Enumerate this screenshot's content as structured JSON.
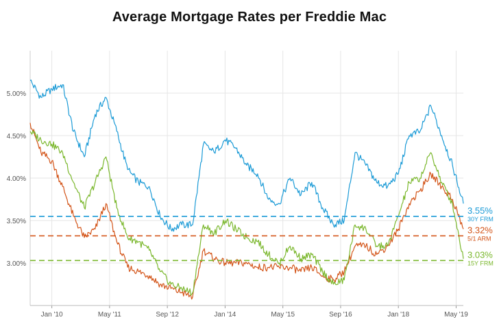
{
  "chart_data": {
    "type": "line",
    "title": "Average Mortgage Rates per Freddie Mac",
    "xlabel": "",
    "ylabel": "",
    "ylim": [
      2.5,
      5.5
    ],
    "xlim": [
      "2009-07",
      "2019-07"
    ],
    "grid": true,
    "y_ticks": [
      {
        "value": 3.0,
        "label": "3.00%"
      },
      {
        "value": 3.5,
        "label": "3.50%"
      },
      {
        "value": 4.0,
        "label": "4.00%"
      },
      {
        "value": 4.5,
        "label": "4.50%"
      },
      {
        "value": 5.0,
        "label": "5.00%"
      }
    ],
    "x_ticks": [
      {
        "date": "2010-01",
        "label": "Jan '10"
      },
      {
        "date": "2011-05",
        "label": "May '11"
      },
      {
        "date": "2012-09",
        "label": "Sep '12"
      },
      {
        "date": "2014-01",
        "label": "Jan '14"
      },
      {
        "date": "2015-05",
        "label": "May '15"
      },
      {
        "date": "2016-09",
        "label": "Sep '16"
      },
      {
        "date": "2018-01",
        "label": "Jan '18"
      },
      {
        "date": "2019-05",
        "label": "May '19"
      }
    ],
    "x": [
      "2009-07",
      "2009-10",
      "2010-01",
      "2010-04",
      "2010-07",
      "2010-10",
      "2011-01",
      "2011-04",
      "2011-07",
      "2011-10",
      "2012-01",
      "2012-04",
      "2012-07",
      "2012-10",
      "2013-01",
      "2013-04",
      "2013-07",
      "2013-10",
      "2014-01",
      "2014-04",
      "2014-07",
      "2014-10",
      "2015-01",
      "2015-04",
      "2015-07",
      "2015-10",
      "2016-01",
      "2016-04",
      "2016-07",
      "2016-10",
      "2017-01",
      "2017-04",
      "2017-07",
      "2017-10",
      "2018-01",
      "2018-04",
      "2018-07",
      "2018-10",
      "2019-01",
      "2019-04",
      "2019-07"
    ],
    "series": [
      {
        "name": "30Y FRM",
        "color": "#1a9ad6",
        "values": [
          5.15,
          4.95,
          5.05,
          5.1,
          4.55,
          4.25,
          4.75,
          4.95,
          4.55,
          4.1,
          3.95,
          3.9,
          3.55,
          3.4,
          3.45,
          3.45,
          4.4,
          4.3,
          4.45,
          4.35,
          4.15,
          4.05,
          3.75,
          3.7,
          4.0,
          3.8,
          3.95,
          3.65,
          3.45,
          3.5,
          4.3,
          4.15,
          3.95,
          3.9,
          4.05,
          4.5,
          4.55,
          4.85,
          4.5,
          4.15,
          3.7
        ],
        "end_value": 3.55,
        "end_label": "3.55%"
      },
      {
        "name": "5/1 ARM",
        "color": "#d35418",
        "values": [
          4.65,
          4.3,
          4.2,
          3.9,
          3.55,
          3.3,
          3.4,
          3.7,
          3.25,
          2.95,
          2.9,
          2.85,
          2.75,
          2.7,
          2.65,
          2.6,
          3.15,
          3.05,
          3.0,
          3.0,
          3.0,
          2.95,
          2.95,
          2.95,
          2.95,
          2.9,
          2.95,
          2.85,
          2.8,
          2.9,
          3.2,
          3.2,
          3.1,
          3.2,
          3.4,
          3.7,
          3.85,
          4.05,
          3.9,
          3.75,
          3.4
        ],
        "end_value": 3.32,
        "end_label": "3.32%"
      },
      {
        "name": "15Y FRM",
        "color": "#7ab72c",
        "values": [
          4.55,
          4.45,
          4.4,
          4.3,
          3.95,
          3.65,
          3.95,
          4.25,
          3.65,
          3.3,
          3.25,
          3.15,
          2.9,
          2.75,
          2.7,
          2.65,
          3.45,
          3.35,
          3.5,
          3.4,
          3.3,
          3.25,
          3.1,
          3.0,
          3.2,
          3.05,
          3.1,
          2.9,
          2.75,
          2.8,
          3.45,
          3.4,
          3.2,
          3.2,
          3.55,
          3.95,
          4.0,
          4.3,
          3.95,
          3.7,
          3.05
        ],
        "end_value": 3.03,
        "end_label": "3.03%"
      }
    ],
    "end_labels": [
      {
        "series": "30Y FRM",
        "value_text": "3.55%",
        "name_text": "30Y FRM"
      },
      {
        "series": "5/1 ARM",
        "value_text": "3.32%",
        "name_text": "5/1 ARM"
      },
      {
        "series": "15Y FRM",
        "value_text": "3.03%",
        "name_text": "15Y FRM"
      }
    ]
  }
}
